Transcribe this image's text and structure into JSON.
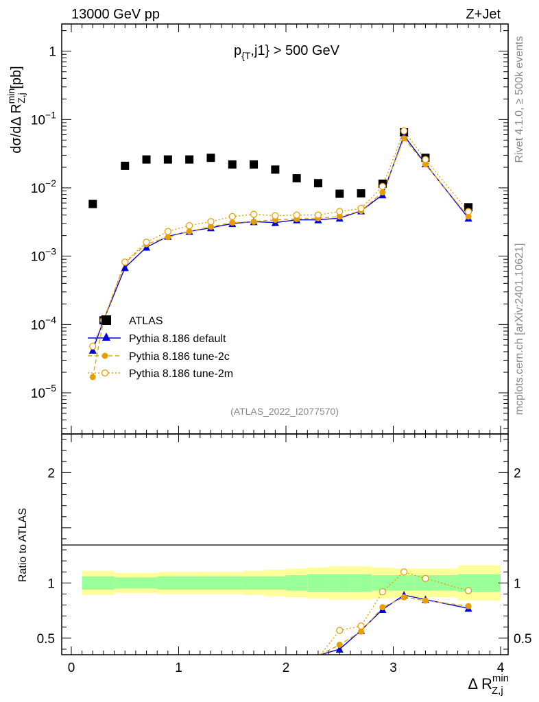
{
  "header": {
    "energy": "13000 GeV pp",
    "process": "Z+Jet"
  },
  "side_labels": {
    "rivet": "Rivet 4.1.0, ≥ 500k events",
    "site": "mcplots.cern.ch [arXiv:2401.10621]"
  },
  "chart_data": {
    "type": "scatter",
    "title": "p_{T},j1} > 500 GeV",
    "analysis_id": "(ATLAS_2022_I2077570)",
    "xlabel": "Δ R_{Z,j}^{min}",
    "ylabel": "dσ/dΔ R_{Z,j}^{min} [pb]",
    "ratio_ylabel": "Ratio to ATLAS",
    "xlim": [
      0,
      4
    ],
    "ylim_main": [
      2.5e-06,
      2.5
    ],
    "ylog": true,
    "ylim_ratio": [
      0.35,
      2.35
    ],
    "x_ticks": [
      "0",
      "1",
      "2",
      "3",
      "4"
    ],
    "y_ticks_main": [
      "10^-5",
      "10^-4",
      "10^-3",
      "10^-2",
      "10^-1",
      "1"
    ],
    "y_ticks_ratio": [
      "0.5",
      "1",
      "2"
    ],
    "legend": [
      "ATLAS",
      "Pythia 8.186 default",
      "Pythia 8.186 tune-2c",
      "Pythia 8.186 tune-2m"
    ],
    "x": [
      0.2,
      0.3,
      0.5,
      0.7,
      0.9,
      1.1,
      1.3,
      1.5,
      1.7,
      1.9,
      2.1,
      2.3,
      2.5,
      2.7,
      2.9,
      3.1,
      3.3,
      3.7
    ],
    "bin_edges": [
      0.1,
      0.4,
      0.6,
      0.8,
      1.0,
      1.2,
      1.4,
      1.6,
      1.8,
      2.0,
      2.2,
      2.4,
      2.6,
      2.8,
      3.0,
      3.2,
      3.4,
      3.6,
      4.0
    ],
    "series": [
      {
        "name": "ATLAS",
        "color": "#000000",
        "marker": "square",
        "values": [
          0.0058,
          0.000115,
          0.021,
          0.026,
          0.026,
          0.026,
          0.0275,
          0.022,
          0.022,
          0.0185,
          0.0138,
          0.0117,
          0.0082,
          0.0083,
          0.0115,
          0.065,
          0.0275,
          0.0052
        ]
      },
      {
        "name": "Pythia 8.186 default",
        "color": "#0000dd",
        "marker": "triangle",
        "line": "solid",
        "values": [
          4.2e-05,
          0.000115,
          0.00068,
          0.00135,
          0.00195,
          0.0023,
          0.0026,
          0.003,
          0.0032,
          0.0031,
          0.0034,
          0.0034,
          0.0036,
          0.0046,
          0.0079,
          0.058,
          0.0225,
          0.0036
        ]
      },
      {
        "name": "Pythia 8.186 tune-2c",
        "color": "#e69f00",
        "marker": "dot",
        "line": "dashed",
        "values": [
          1.7e-05,
          0.000115,
          0.0008,
          0.0015,
          0.0019,
          0.0023,
          0.0027,
          0.0031,
          0.0032,
          0.0034,
          0.0035,
          0.0036,
          0.0038,
          0.0046,
          0.0086,
          0.053,
          0.022,
          0.0038
        ]
      },
      {
        "name": "Pythia 8.186 tune-2m",
        "color": "#e69f00",
        "marker": "open-circle",
        "line": "dotted",
        "values": [
          4.8e-05,
          0.000115,
          0.00082,
          0.0016,
          0.0023,
          0.0028,
          0.0032,
          0.0038,
          0.0041,
          0.0039,
          0.004,
          0.004,
          0.0045,
          0.005,
          0.0105,
          0.068,
          0.026,
          0.0045
        ]
      }
    ],
    "ratio_series": [
      {
        "name": "Pythia 8.186 default",
        "x": [
          2.5,
          2.7,
          2.9,
          3.1,
          3.3,
          3.7
        ],
        "values": [
          0.4,
          0.57,
          0.76,
          0.89,
          0.85,
          0.77
        ]
      },
      {
        "name": "Pythia 8.186 tune-2c",
        "x": [
          2.5,
          2.7,
          2.9,
          3.1,
          3.3,
          3.7
        ],
        "values": [
          0.44,
          0.56,
          0.78,
          0.87,
          0.84,
          0.79
        ]
      },
      {
        "name": "Pythia 8.186 tune-2m",
        "x": [
          2.5,
          2.7,
          2.9,
          3.1,
          3.3,
          3.7
        ],
        "values": [
          0.57,
          0.61,
          0.92,
          1.1,
          1.04,
          0.93
        ]
      }
    ],
    "ratio_band_green": [
      0.06,
      0.05,
      0.05,
      0.06,
      0.06,
      0.06,
      0.06,
      0.06,
      0.06,
      0.07,
      0.08,
      0.08,
      0.08,
      0.07,
      0.07,
      0.07,
      0.07,
      0.08
    ],
    "ratio_band_yellow": [
      0.11,
      0.09,
      0.09,
      0.1,
      0.1,
      0.1,
      0.1,
      0.11,
      0.12,
      0.13,
      0.14,
      0.15,
      0.15,
      0.14,
      0.13,
      0.13,
      0.13,
      0.16
    ]
  }
}
